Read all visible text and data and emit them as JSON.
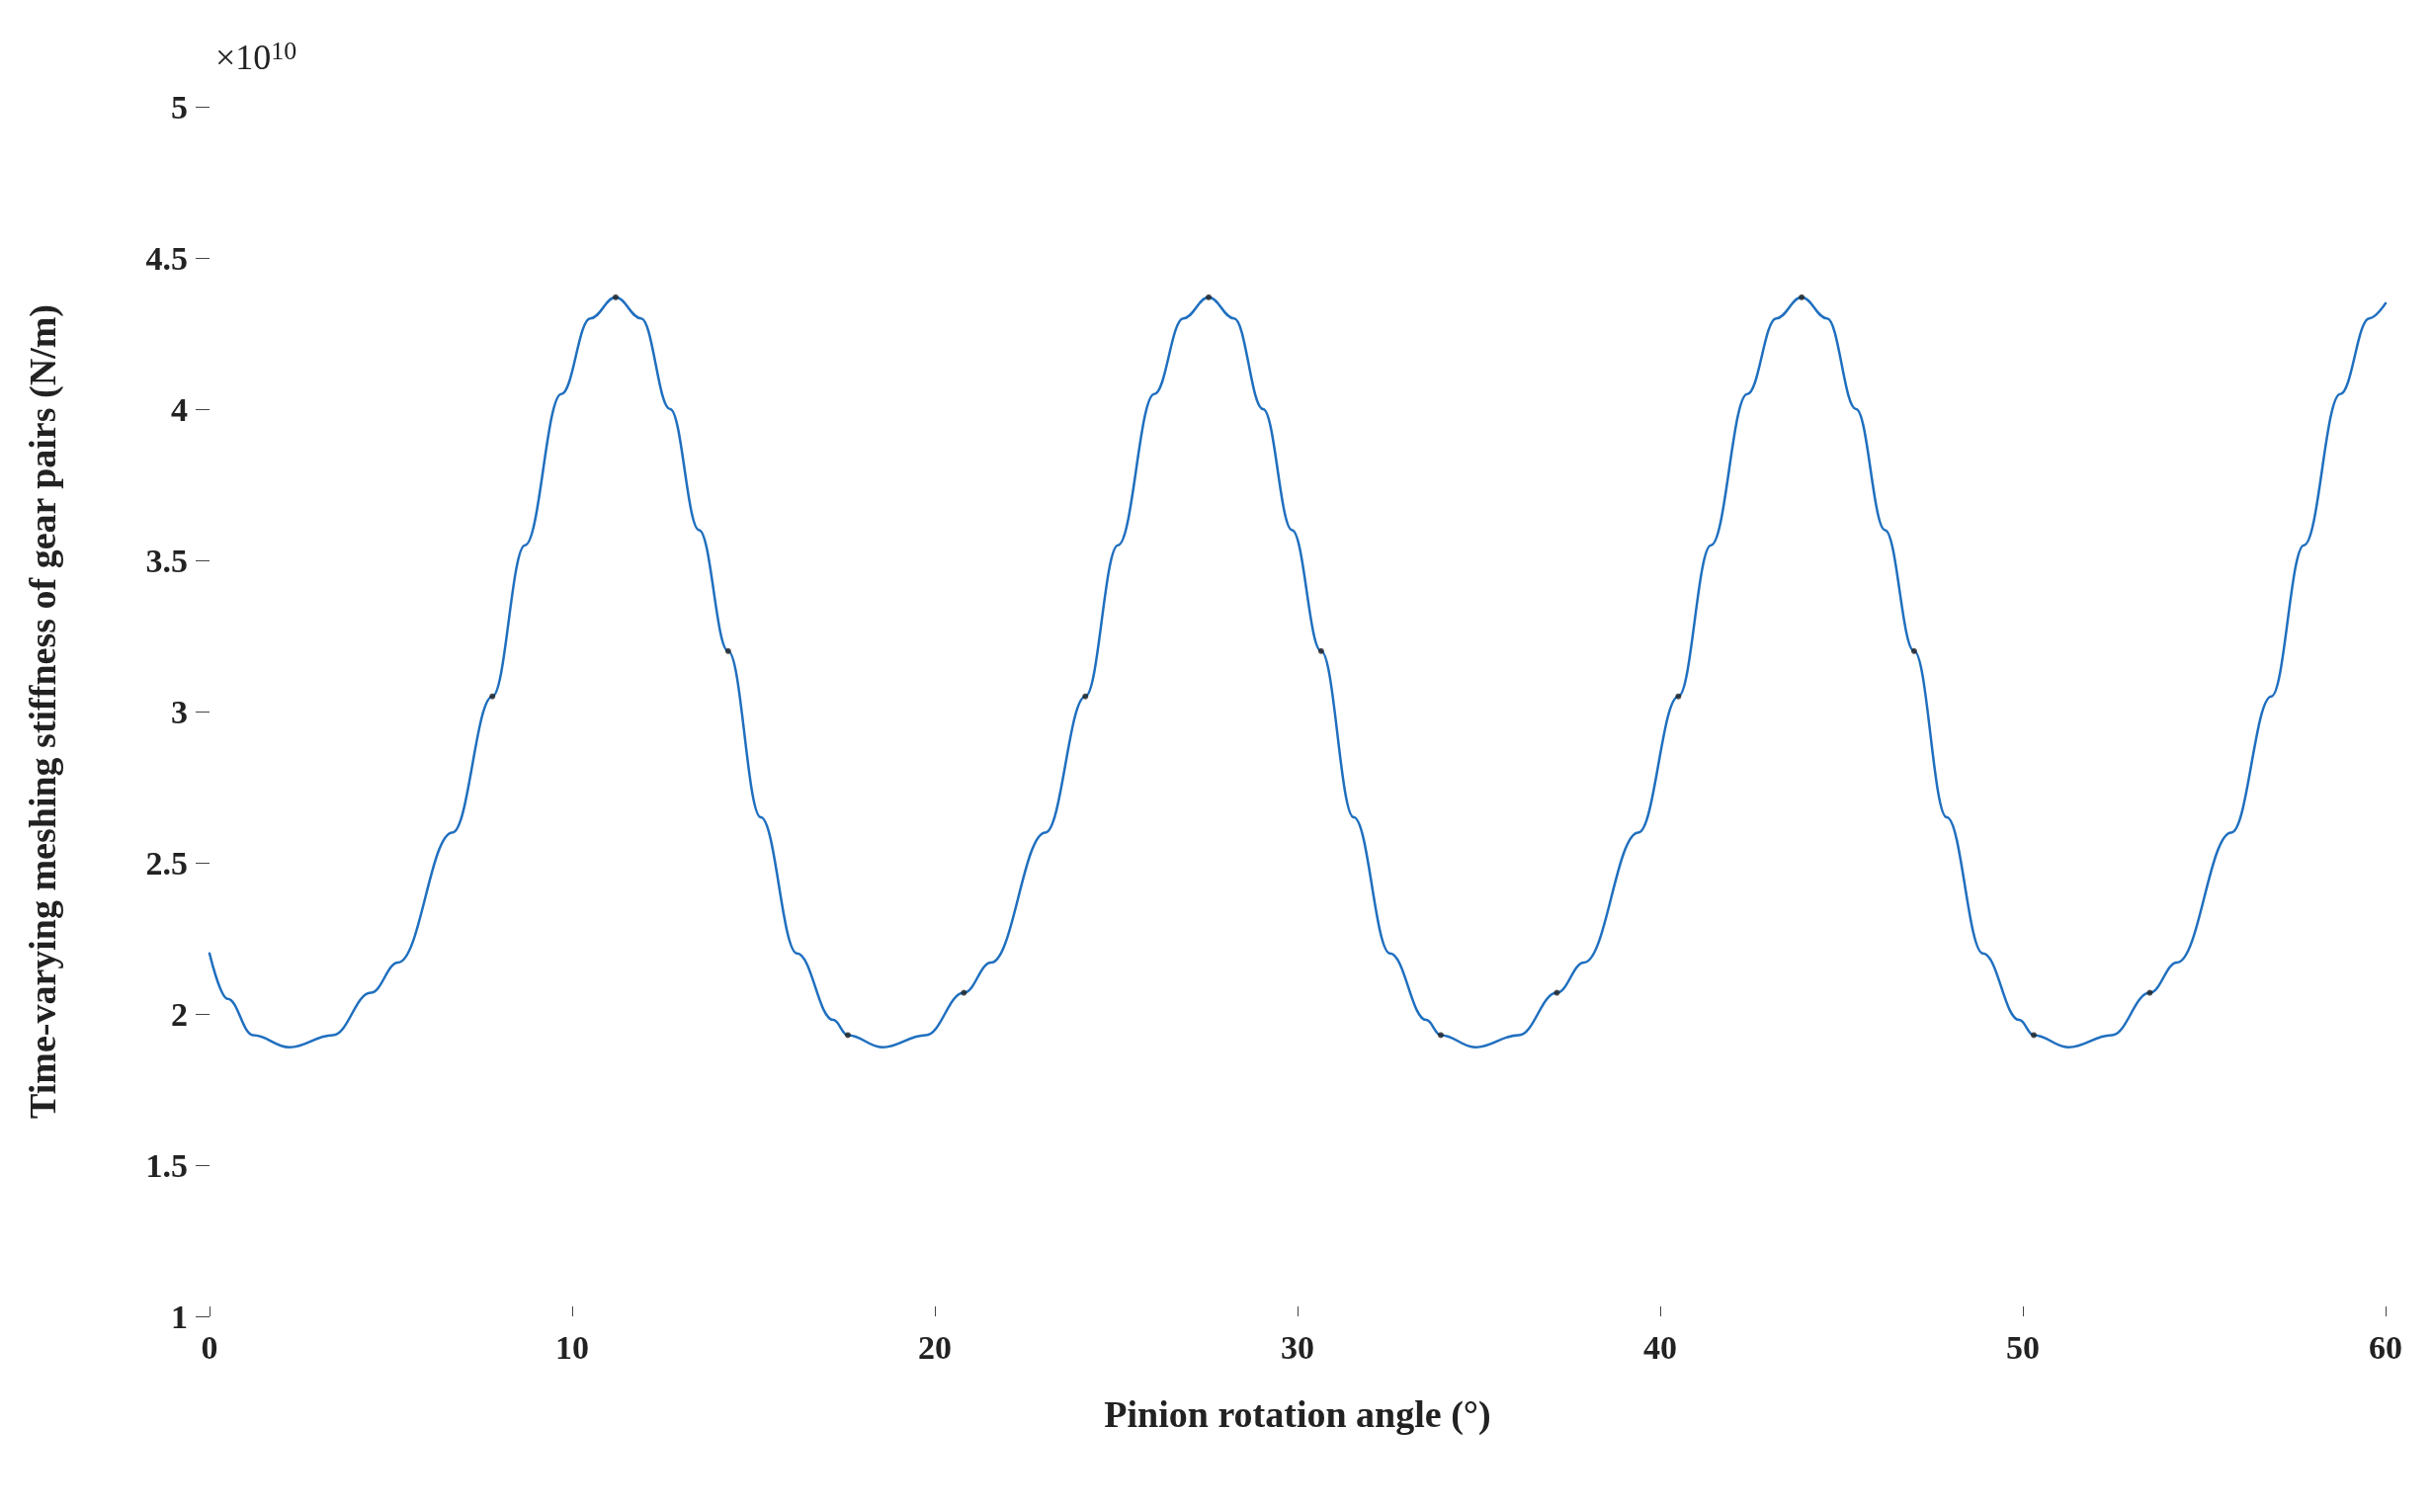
{
  "chart_data": {
    "type": "line",
    "xlabel": "Pinion rotation angle (°)",
    "ylabel": "Time-varying meshing stiffness of gear pairs (N/m)",
    "annotations": [
      "×10$^{10}$"
    ],
    "xlim": [
      0,
      60
    ],
    "xticks": [
      0,
      10,
      20,
      30,
      40,
      50,
      60
    ],
    "ylim": [
      1,
      5
    ],
    "yticks": [
      1,
      1.5,
      2,
      2.5,
      3,
      3.5,
      4,
      4.5,
      5
    ],
    "grid": false,
    "series": [
      {
        "marker": "none",
        "color": "#1f6fbf",
        "x": [
          0,
          0.5,
          1.2,
          2.2,
          3.4,
          4.45,
          5.2,
          6.7,
          7.8,
          8.7,
          9.7,
          10.5,
          11.2,
          11.9,
          12.7,
          13.5,
          14.3,
          15.2,
          16.2,
          17.2,
          17.6,
          18.55,
          19.75,
          20.8,
          21.55,
          23.05,
          24.15,
          25.05,
          26.05,
          26.85,
          27.55,
          28.25,
          29.05,
          29.85,
          30.65,
          31.55,
          32.55,
          33.55,
          33.95,
          34.9,
          36.1,
          37.15,
          37.9,
          39.4,
          40.5,
          41.4,
          42.4,
          43.2,
          43.9,
          44.6,
          45.4,
          46.2,
          47,
          47.9,
          48.9,
          49.9,
          50.3,
          51.25,
          52.45,
          53.5,
          54.25,
          55.75,
          56.85,
          57.75,
          58.75,
          59.55,
          60
        ],
        "values": [
          2.2,
          2.05,
          1.93,
          1.89,
          1.93,
          2.07,
          2.17,
          2.6,
          3.05,
          3.55,
          4.05,
          4.3,
          4.37,
          4.3,
          4.0,
          3.6,
          3.2,
          2.65,
          2.2,
          1.98,
          1.93,
          1.89,
          1.93,
          2.07,
          2.17,
          2.6,
          3.05,
          3.55,
          4.05,
          4.3,
          4.37,
          4.3,
          4.0,
          3.6,
          3.2,
          2.65,
          2.2,
          1.98,
          1.93,
          1.89,
          1.93,
          2.07,
          2.17,
          2.6,
          3.05,
          3.55,
          4.05,
          4.3,
          4.37,
          4.3,
          4.0,
          3.6,
          3.2,
          2.65,
          2.2,
          1.98,
          1.93,
          1.89,
          1.93,
          2.07,
          2.17,
          2.6,
          3.05,
          3.55,
          4.05,
          4.3,
          4.35
        ]
      },
      {
        "type": "scatter",
        "marker": "circle",
        "color": "#222222",
        "x": [
          7.8,
          11.2,
          14.3,
          17.6,
          20.8,
          24.15,
          27.55,
          30.65,
          33.95,
          37.15,
          40.5,
          43.9,
          47,
          50.3,
          53.5
        ],
        "values": [
          3.05,
          4.37,
          3.2,
          1.93,
          2.07,
          3.05,
          4.37,
          3.2,
          1.93,
          2.07,
          3.05,
          4.37,
          3.2,
          1.93,
          2.07
        ]
      }
    ]
  }
}
